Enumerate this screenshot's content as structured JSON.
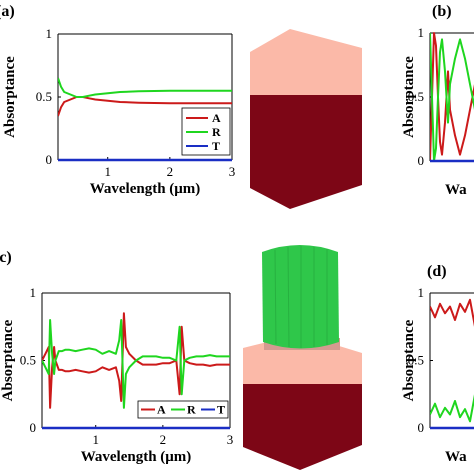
{
  "figure": {
    "panel_labels": [
      "(a)",
      "(b)",
      "(c)",
      "(d)"
    ]
  },
  "colors": {
    "A": "#cc1a1a",
    "R": "#1fd61f",
    "T": "#1a2ec4"
  },
  "chart_data": [
    {
      "panel": "(a)",
      "type": "line",
      "xlabel": "Wavelength (μm)",
      "ylabel": "Absorptance",
      "xlim": [
        0.2,
        3
      ],
      "ylim": [
        0,
        1
      ],
      "xticks": [
        "1",
        "2",
        "3"
      ],
      "yticks": [
        "0",
        "0.5",
        "1"
      ],
      "legend": "bottom-right",
      "legend_layout": "vertical",
      "series": [
        {
          "name": "A",
          "color": "#cc1a1a",
          "x": [
            0.2,
            0.25,
            0.3,
            0.4,
            0.5,
            0.6,
            0.7,
            0.8,
            1.0,
            1.2,
            1.5,
            2.0,
            2.5,
            3.0
          ],
          "y": [
            0.35,
            0.42,
            0.46,
            0.48,
            0.5,
            0.5,
            0.49,
            0.48,
            0.47,
            0.46,
            0.455,
            0.45,
            0.45,
            0.45
          ]
        },
        {
          "name": "R",
          "color": "#1fd61f",
          "x": [
            0.2,
            0.25,
            0.3,
            0.4,
            0.5,
            0.6,
            0.7,
            0.8,
            1.0,
            1.2,
            1.5,
            2.0,
            2.5,
            3.0
          ],
          "y": [
            0.65,
            0.58,
            0.54,
            0.52,
            0.5,
            0.5,
            0.51,
            0.52,
            0.53,
            0.54,
            0.545,
            0.55,
            0.55,
            0.55
          ]
        },
        {
          "name": "T",
          "color": "#1a2ec4",
          "x": [
            0.2,
            3.0
          ],
          "y": [
            0,
            0
          ]
        }
      ]
    },
    {
      "panel": "(b)",
      "type": "line",
      "xlabel": "Wa",
      "ylabel": "Absorptance",
      "xlim": [
        0.2,
        1.2
      ],
      "ylim": [
        0,
        1
      ],
      "xticks": [],
      "yticks": [
        "0",
        "0.5",
        "1"
      ],
      "series": [
        {
          "name": "A",
          "color": "#cc1a1a",
          "x": [
            0.2,
            0.22,
            0.24,
            0.26,
            0.28,
            0.3,
            0.32,
            0.35,
            0.38,
            0.4,
            0.45,
            0.5,
            0.55,
            0.6,
            0.65,
            0.7,
            0.8,
            0.9,
            1.0
          ],
          "y": [
            0.0,
            0.5,
            1.0,
            0.9,
            0.5,
            0.15,
            0.05,
            0.3,
            0.7,
            0.4,
            0.2,
            0.05,
            0.2,
            0.4,
            0.6,
            0.55,
            0.45,
            0.35,
            0.3
          ]
        },
        {
          "name": "R",
          "color": "#1fd61f",
          "x": [
            0.2,
            0.22,
            0.24,
            0.26,
            0.28,
            0.3,
            0.32,
            0.35,
            0.38,
            0.4,
            0.45,
            0.5,
            0.55,
            0.6,
            0.65,
            0.7,
            0.8,
            0.9,
            1.0
          ],
          "y": [
            1.0,
            0.5,
            0.0,
            0.1,
            0.5,
            0.85,
            0.95,
            0.7,
            0.3,
            0.6,
            0.8,
            0.95,
            0.8,
            0.6,
            0.4,
            0.45,
            0.55,
            0.65,
            0.7
          ]
        },
        {
          "name": "T",
          "color": "#1a2ec4",
          "x": [
            0.2,
            1.2
          ],
          "y": [
            0,
            0
          ]
        }
      ]
    },
    {
      "panel": "(c)",
      "type": "line",
      "xlabel": "Wavelength (μm)",
      "ylabel": "Absorptance",
      "xlim": [
        0.2,
        3
      ],
      "ylim": [
        0,
        1
      ],
      "xticks": [
        "1",
        "2",
        "3"
      ],
      "yticks": [
        "0",
        "0.5",
        "1"
      ],
      "legend": "bottom-right",
      "legend_layout": "horizontal",
      "series": [
        {
          "name": "A",
          "color": "#cc1a1a",
          "x": [
            0.2,
            0.25,
            0.3,
            0.32,
            0.35,
            0.38,
            0.4,
            0.45,
            0.5,
            0.55,
            0.6,
            0.7,
            0.8,
            0.9,
            1.0,
            1.1,
            1.2,
            1.3,
            1.35,
            1.38,
            1.42,
            1.45,
            1.5,
            1.6,
            1.7,
            1.8,
            1.9,
            2.0,
            2.1,
            2.2,
            2.25,
            2.28,
            2.32,
            2.4,
            2.5,
            2.6,
            2.7,
            2.8,
            2.9,
            3.0
          ],
          "y": [
            0.5,
            0.55,
            0.6,
            0.15,
            0.45,
            0.6,
            0.5,
            0.43,
            0.43,
            0.42,
            0.42,
            0.43,
            0.42,
            0.41,
            0.42,
            0.45,
            0.43,
            0.45,
            0.35,
            0.2,
            0.85,
            0.6,
            0.55,
            0.5,
            0.47,
            0.47,
            0.47,
            0.48,
            0.48,
            0.5,
            0.25,
            0.75,
            0.5,
            0.48,
            0.47,
            0.47,
            0.46,
            0.47,
            0.47,
            0.47
          ]
        },
        {
          "name": "R",
          "color": "#1fd61f",
          "x": [
            0.2,
            0.25,
            0.3,
            0.32,
            0.35,
            0.38,
            0.4,
            0.45,
            0.5,
            0.55,
            0.6,
            0.7,
            0.8,
            0.9,
            1.0,
            1.1,
            1.2,
            1.3,
            1.35,
            1.38,
            1.42,
            1.45,
            1.5,
            1.6,
            1.7,
            1.8,
            1.9,
            2.0,
            2.1,
            2.2,
            2.25,
            2.28,
            2.32,
            2.4,
            2.5,
            2.6,
            2.7,
            2.8,
            2.9,
            3.0
          ],
          "y": [
            0.5,
            0.45,
            0.4,
            0.8,
            0.55,
            0.4,
            0.5,
            0.57,
            0.57,
            0.58,
            0.58,
            0.57,
            0.58,
            0.59,
            0.58,
            0.55,
            0.57,
            0.55,
            0.65,
            0.8,
            0.15,
            0.4,
            0.45,
            0.5,
            0.53,
            0.53,
            0.53,
            0.52,
            0.52,
            0.5,
            0.75,
            0.25,
            0.5,
            0.52,
            0.53,
            0.53,
            0.54,
            0.53,
            0.53,
            0.53
          ]
        },
        {
          "name": "T",
          "color": "#1a2ec4",
          "x": [
            0.2,
            3.0
          ],
          "y": [
            0,
            0
          ]
        }
      ]
    },
    {
      "panel": "(d)",
      "type": "line",
      "xlabel": "Wa",
      "ylabel": "Absorptance",
      "xlim": [
        0.2,
        1.2
      ],
      "ylim": [
        0,
        1
      ],
      "xticks": [],
      "yticks": [
        "0",
        "0.5",
        "1"
      ],
      "series": [
        {
          "name": "A",
          "color": "#cc1a1a",
          "x": [
            0.2,
            0.25,
            0.3,
            0.35,
            0.4,
            0.45,
            0.5,
            0.55,
            0.6,
            0.65,
            0.7,
            0.75,
            0.8,
            0.85,
            0.9,
            0.95,
            1.0
          ],
          "y": [
            0.9,
            0.82,
            0.92,
            0.85,
            0.9,
            0.8,
            0.92,
            0.86,
            0.95,
            0.75,
            0.9,
            0.85,
            0.93,
            0.8,
            0.9,
            0.86,
            0.9
          ]
        },
        {
          "name": "R",
          "color": "#1fd61f",
          "x": [
            0.2,
            0.25,
            0.3,
            0.35,
            0.4,
            0.45,
            0.5,
            0.55,
            0.6,
            0.65,
            0.7,
            0.75,
            0.8,
            0.85,
            0.9,
            0.95,
            1.0
          ],
          "y": [
            0.1,
            0.18,
            0.08,
            0.15,
            0.1,
            0.2,
            0.08,
            0.14,
            0.05,
            0.25,
            0.1,
            0.15,
            0.07,
            0.2,
            0.1,
            0.14,
            0.1
          ]
        },
        {
          "name": "T",
          "color": "#1a2ec4",
          "x": [
            0.2,
            1.2
          ],
          "y": [
            0,
            0
          ]
        }
      ]
    }
  ],
  "illustrations": [
    {
      "panel": "(a)",
      "shape": "substrate-block",
      "colors": {
        "top": "#fbb9a8",
        "side": "#7d0616"
      }
    },
    {
      "panel": "(c)",
      "shape": "cylinder-on-substrate",
      "colors": {
        "cylinder": "#2fc74a",
        "top": "#fbb9a8",
        "side": "#7d0616"
      }
    }
  ]
}
